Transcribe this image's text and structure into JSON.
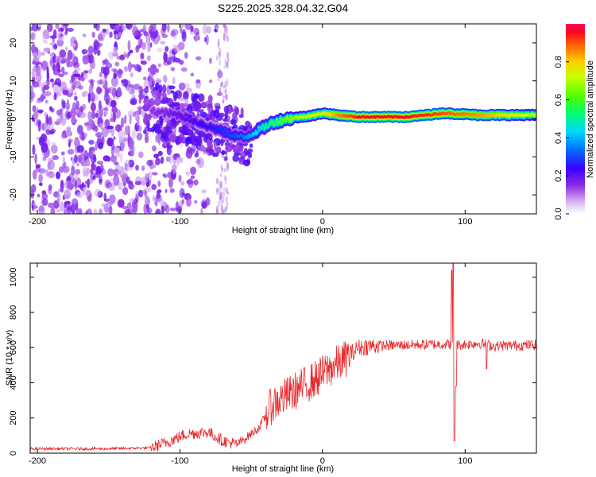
{
  "title": "S225.2025.328.04.32.G04",
  "chart_data": [
    {
      "type": "heatmap",
      "xlabel": "Height of straight line (km)",
      "ylabel": "Frequency (Hz)",
      "xlim": [
        -205,
        150
      ],
      "ylim": [
        -25,
        25
      ],
      "x_ticks": [
        -200,
        -100,
        0,
        100
      ],
      "y_ticks": [
        -20,
        -10,
        0,
        10,
        20
      ],
      "colorbar": {
        "label": "Normalized spectral amplitude",
        "range": [
          0,
          1
        ],
        "ticks": [
          "0.0",
          "0.2",
          "0.4",
          "0.6",
          "0.8"
        ],
        "tick_values": [
          0.0,
          0.2,
          0.4,
          0.6,
          0.8
        ]
      },
      "ridge": {
        "x": [
          -120,
          -100,
          -80,
          -65,
          -55,
          -45,
          -35,
          -25,
          -15,
          -5,
          0,
          10,
          25,
          60,
          85,
          110,
          150
        ],
        "freq": [
          2,
          1,
          -2,
          -4,
          -5,
          -3,
          -1,
          0,
          0.5,
          1,
          1.5,
          1,
          0.5,
          0.5,
          1.5,
          1,
          1
        ],
        "amplitude": [
          0.15,
          0.2,
          0.25,
          0.3,
          0.35,
          0.45,
          0.55,
          0.65,
          0.7,
          0.75,
          0.75,
          0.85,
          0.95,
          0.95,
          0.9,
          0.85,
          0.7
        ]
      }
    },
    {
      "type": "line",
      "xlabel": "Height of straight line (km)",
      "ylabel": "SNR (10 * v/v)",
      "xlim": [
        -205,
        150
      ],
      "ylim": [
        0,
        1080
      ],
      "x_ticks": [
        -200,
        -100,
        0,
        100
      ],
      "y_ticks": [
        0,
        200,
        400,
        600,
        800,
        1000
      ],
      "color": "#e8282a",
      "trend": {
        "x": [
          -205,
          -150,
          -120,
          -110,
          -95,
          -80,
          -70,
          -60,
          -45,
          -35,
          -20,
          -5,
          5,
          15,
          25,
          35,
          60,
          88,
          92,
          96,
          110,
          120,
          150
        ],
        "y": [
          25,
          25,
          30,
          60,
          110,
          120,
          70,
          50,
          140,
          280,
          350,
          420,
          480,
          530,
          600,
          610,
          615,
          620,
          620,
          615,
          625,
          610,
          615
        ]
      },
      "spikes": [
        {
          "x": 90.5,
          "y": 1040
        },
        {
          "x": 91.5,
          "y": 1080
        },
        {
          "x": 92.5,
          "y": 70
        },
        {
          "x": 93.5,
          "y": 380
        },
        {
          "x": 115,
          "y": 480
        }
      ]
    }
  ]
}
